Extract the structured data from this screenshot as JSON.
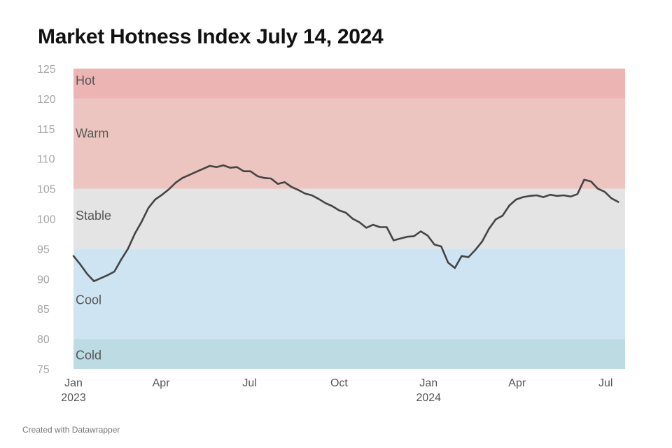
{
  "title": "Market Hotness Index July 14, 2024",
  "credit": "Created with Datawrapper",
  "chart_data": {
    "type": "line",
    "title": "Market Hotness Index July 14, 2024",
    "xlabel": "",
    "ylabel": "",
    "ylim": [
      75,
      125
    ],
    "xlim": [
      "2023-01-01",
      "2024-07-21"
    ],
    "yticks": [
      75,
      80,
      85,
      90,
      95,
      100,
      105,
      110,
      115,
      120,
      125
    ],
    "xticks": [
      {
        "date": "2023-01-01",
        "label": "Jan",
        "sublabel": "2023"
      },
      {
        "date": "2023-04-01",
        "label": "Apr",
        "sublabel": ""
      },
      {
        "date": "2023-07-01",
        "label": "Jul",
        "sublabel": ""
      },
      {
        "date": "2023-10-01",
        "label": "Oct",
        "sublabel": ""
      },
      {
        "date": "2024-01-01",
        "label": "Jan",
        "sublabel": "2024"
      },
      {
        "date": "2024-04-01",
        "label": "Apr",
        "sublabel": ""
      },
      {
        "date": "2024-07-01",
        "label": "Jul",
        "sublabel": ""
      }
    ],
    "bands": [
      {
        "label": "Cold",
        "from": 75,
        "to": 80,
        "color": "#bcdbe3"
      },
      {
        "label": "Cool",
        "from": 80,
        "to": 95,
        "color": "#cfe4f3"
      },
      {
        "label": "Stable",
        "from": 95,
        "to": 105,
        "color": "#e4e4e4"
      },
      {
        "label": "Warm",
        "from": 105,
        "to": 120,
        "color": "#ecc5c0"
      },
      {
        "label": "Hot",
        "from": 120,
        "to": 125,
        "color": "#ecb4b2"
      }
    ],
    "line_color": "#444444",
    "grid": false,
    "series": [
      {
        "points": [
          [
            "2023-01-01",
            93.8
          ],
          [
            "2023-01-08",
            92.4
          ],
          [
            "2023-01-15",
            90.8
          ],
          [
            "2023-01-22",
            89.6
          ],
          [
            "2023-01-29",
            90.1
          ],
          [
            "2023-02-05",
            90.6
          ],
          [
            "2023-02-12",
            91.2
          ],
          [
            "2023-02-19",
            93.2
          ],
          [
            "2023-02-26",
            95.0
          ],
          [
            "2023-03-05",
            97.5
          ],
          [
            "2023-03-12",
            99.5
          ],
          [
            "2023-03-19",
            101.8
          ],
          [
            "2023-03-26",
            103.2
          ],
          [
            "2023-04-02",
            104.0
          ],
          [
            "2023-04-09",
            104.9
          ],
          [
            "2023-04-16",
            106.0
          ],
          [
            "2023-04-23",
            106.8
          ],
          [
            "2023-04-30",
            107.3
          ],
          [
            "2023-05-07",
            107.8
          ],
          [
            "2023-05-14",
            108.3
          ],
          [
            "2023-05-21",
            108.8
          ],
          [
            "2023-05-28",
            108.6
          ],
          [
            "2023-06-04",
            108.9
          ],
          [
            "2023-06-11",
            108.5
          ],
          [
            "2023-06-18",
            108.6
          ],
          [
            "2023-06-25",
            107.9
          ],
          [
            "2023-07-02",
            107.9
          ],
          [
            "2023-07-09",
            107.1
          ],
          [
            "2023-07-16",
            106.8
          ],
          [
            "2023-07-23",
            106.7
          ],
          [
            "2023-07-30",
            105.8
          ],
          [
            "2023-08-06",
            106.1
          ],
          [
            "2023-08-13",
            105.3
          ],
          [
            "2023-08-20",
            104.8
          ],
          [
            "2023-08-27",
            104.2
          ],
          [
            "2023-09-03",
            103.9
          ],
          [
            "2023-09-10",
            103.3
          ],
          [
            "2023-09-17",
            102.6
          ],
          [
            "2023-09-24",
            102.1
          ],
          [
            "2023-10-01",
            101.4
          ],
          [
            "2023-10-08",
            101.0
          ],
          [
            "2023-10-15",
            100.0
          ],
          [
            "2023-10-22",
            99.4
          ],
          [
            "2023-10-29",
            98.5
          ],
          [
            "2023-11-05",
            99.0
          ],
          [
            "2023-11-12",
            98.6
          ],
          [
            "2023-11-19",
            98.6
          ],
          [
            "2023-11-26",
            96.4
          ],
          [
            "2023-12-03",
            96.7
          ],
          [
            "2023-12-10",
            97.0
          ],
          [
            "2023-12-17",
            97.1
          ],
          [
            "2023-12-24",
            97.9
          ],
          [
            "2023-12-31",
            97.2
          ],
          [
            "2024-01-07",
            95.7
          ],
          [
            "2024-01-14",
            95.4
          ],
          [
            "2024-01-21",
            92.7
          ],
          [
            "2024-01-28",
            91.8
          ],
          [
            "2024-02-04",
            93.8
          ],
          [
            "2024-02-11",
            93.6
          ],
          [
            "2024-02-18",
            94.8
          ],
          [
            "2024-02-25",
            96.2
          ],
          [
            "2024-03-03",
            98.3
          ],
          [
            "2024-03-10",
            99.9
          ],
          [
            "2024-03-17",
            100.5
          ],
          [
            "2024-03-24",
            102.2
          ],
          [
            "2024-03-31",
            103.2
          ],
          [
            "2024-04-07",
            103.6
          ],
          [
            "2024-04-14",
            103.8
          ],
          [
            "2024-04-21",
            103.9
          ],
          [
            "2024-04-28",
            103.6
          ],
          [
            "2024-05-05",
            104.0
          ],
          [
            "2024-05-12",
            103.8
          ],
          [
            "2024-05-19",
            103.9
          ],
          [
            "2024-05-26",
            103.7
          ],
          [
            "2024-06-02",
            104.1
          ],
          [
            "2024-06-09",
            106.5
          ],
          [
            "2024-06-16",
            106.2
          ],
          [
            "2024-06-23",
            105.0
          ],
          [
            "2024-06-30",
            104.5
          ],
          [
            "2024-07-07",
            103.4
          ],
          [
            "2024-07-14",
            102.8
          ]
        ]
      }
    ]
  }
}
